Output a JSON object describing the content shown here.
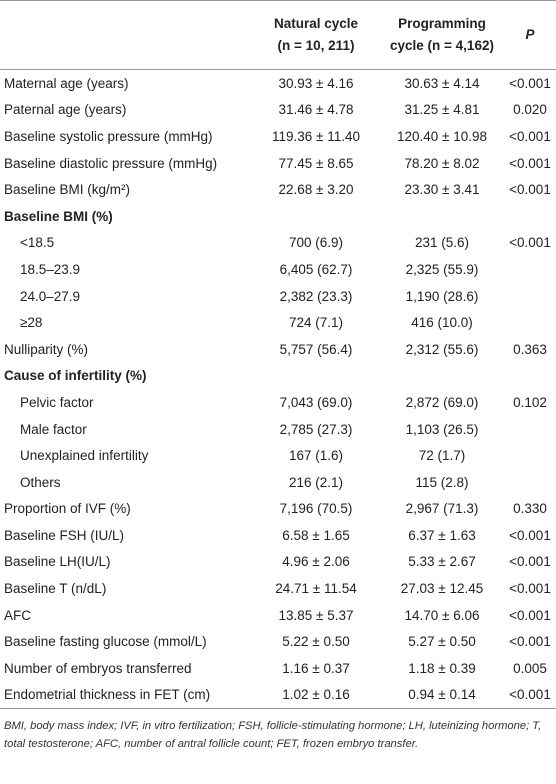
{
  "header": {
    "columns": [
      {
        "lines": [
          "Natural cycle",
          "(n = 10, 211)"
        ]
      },
      {
        "lines": [
          "Programming",
          "cycle (n = 4,162)"
        ]
      },
      {
        "lines": [
          "P"
        ]
      }
    ]
  },
  "rows": [
    {
      "label": "Maternal age (years)",
      "cells": [
        "30.93 ± 4.16",
        "30.63 ± 4.14",
        "<0.001"
      ]
    },
    {
      "label": "Paternal age (years)",
      "cells": [
        "31.46 ± 4.78",
        "31.25 ± 4.81",
        "0.020"
      ]
    },
    {
      "label": "Baseline systolic pressure (mmHg)",
      "cells": [
        "119.36 ± 11.40",
        "120.40 ± 10.98",
        "<0.001"
      ]
    },
    {
      "label": "Baseline diastolic pressure (mmHg)",
      "cells": [
        "77.45 ± 8.65",
        "78.20 ± 8.02",
        "<0.001"
      ]
    },
    {
      "label": "Baseline BMI (kg/m²)",
      "cells": [
        "22.68 ± 3.20",
        "23.30 ± 3.41",
        "<0.001"
      ]
    },
    {
      "heading": "Baseline BMI (%)"
    },
    {
      "label": "<18.5",
      "indent": true,
      "cells": [
        "700 (6.9)",
        "231 (5.6)",
        "<0.001"
      ]
    },
    {
      "label": "18.5–23.9",
      "indent": true,
      "cells": [
        "6,405 (62.7)",
        "2,325 (55.9)"
      ]
    },
    {
      "label": "24.0–27.9",
      "indent": true,
      "cells": [
        "2,382 (23.3)",
        "1,190 (28.6)"
      ]
    },
    {
      "label": "≥28",
      "indent": true,
      "cells": [
        "724 (7.1)",
        "416 (10.0)"
      ]
    },
    {
      "label": "Nulliparity (%)",
      "cells": [
        "5,757 (56.4)",
        "2,312 (55.6)",
        "0.363"
      ]
    },
    {
      "heading": "Cause of infertility (%)"
    },
    {
      "label": "Pelvic factor",
      "indent": true,
      "cells": [
        "7,043 (69.0)",
        "2,872 (69.0)",
        "0.102"
      ]
    },
    {
      "label": "Male factor",
      "indent": true,
      "cells": [
        "2,785 (27.3)",
        "1,103 (26.5)"
      ]
    },
    {
      "label": "Unexplained infertility",
      "indent": true,
      "cells": [
        "167 (1.6)",
        "72 (1.7)"
      ]
    },
    {
      "label": "Others",
      "indent": true,
      "cells": [
        "216 (2.1)",
        "115 (2.8)"
      ]
    },
    {
      "label": "Proportion of IVF (%)",
      "cells": [
        "7,196 (70.5)",
        "2,967 (71.3)",
        "0.330"
      ]
    },
    {
      "label": "Baseline FSH (IU/L)",
      "cells": [
        "6.58 ± 1.65",
        "6.37 ± 1.63",
        "<0.001"
      ]
    },
    {
      "label": "Baseline LH(IU/L)",
      "cells": [
        "4.96 ± 2.06",
        "5.33 ± 2.67",
        "<0.001"
      ]
    },
    {
      "label": "Baseline T (n/dL)",
      "cells": [
        "24.71 ± 11.54",
        "27.03 ± 12.45",
        "<0.001"
      ]
    },
    {
      "label": "AFC",
      "cells": [
        "13.85 ± 5.37",
        "14.70 ± 6.06",
        "<0.001"
      ]
    },
    {
      "label": "Baseline fasting glucose (mmol/L)",
      "cells": [
        "5.22 ± 0.50",
        "5.27 ± 0.50",
        "<0.001"
      ]
    },
    {
      "label": "Number of embryos transferred",
      "cells": [
        "1.16 ± 0.37",
        "1.18 ± 0.39",
        "0.005"
      ]
    },
    {
      "label": "Endometrial thickness in FET (cm)",
      "cells": [
        "1.02 ± 0.16",
        "0.94 ± 0.14",
        "<0.001"
      ]
    }
  ],
  "footnote": "BMI, body mass index; IVF, in vitro fertilization; FSH, follicle-stimulating hormone; LH, luteinizing hormone; T, total testosterone; AFC, number of antral follicle count; FET, frozen embryo transfer."
}
